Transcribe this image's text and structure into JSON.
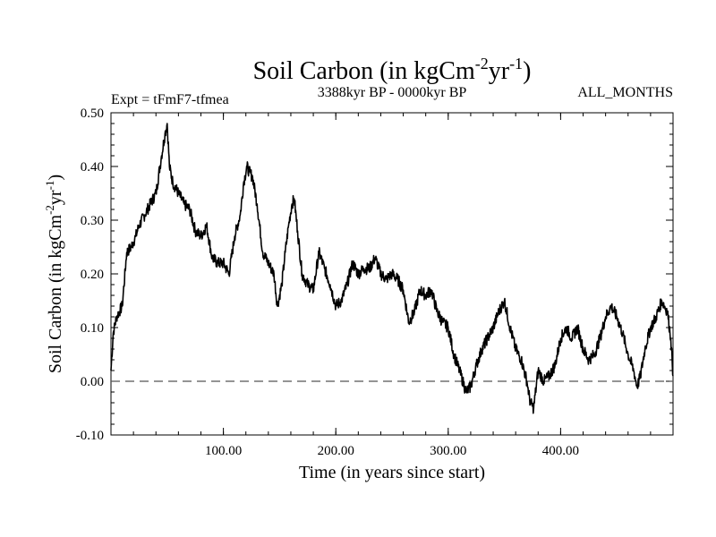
{
  "chart_data": {
    "type": "line",
    "title": "Soil Carbon (in kgCm",
    "title_sup1": "-2",
    "title_mid": "yr",
    "title_sup2": "-1",
    "title_end": ")",
    "subtitle_left": "Expt = tFmF7-tfmea",
    "subtitle_center": "3388kyr BP - 0000kyr BP",
    "subtitle_right": "ALL_MONTHS",
    "xlabel": "Time (in years since start)",
    "ylabel": "Soil Carbon (in kgCm",
    "ylabel_sup1": "-2",
    "ylabel_mid": "yr",
    "ylabel_sup2": "-1",
    "ylabel_end": ")",
    "xlim": [
      0,
      500
    ],
    "ylim": [
      -0.1,
      0.5
    ],
    "x_ticks": [
      100,
      200,
      300,
      400
    ],
    "x_tick_labels": [
      "100.00",
      "200.00",
      "300.00",
      "400.00"
    ],
    "y_ticks": [
      -0.1,
      0.0,
      0.1,
      0.2,
      0.3,
      0.4,
      0.5
    ],
    "y_tick_labels": [
      "-0.10",
      "0.00",
      "0.10",
      "0.20",
      "0.30",
      "0.40",
      "0.50"
    ],
    "reference_line": {
      "y": 0.0,
      "style": "dashed"
    },
    "series": [
      {
        "name": "Soil Carbon",
        "x": [
          0,
          2,
          5,
          10,
          14,
          18,
          22,
          25,
          30,
          35,
          40,
          45,
          48,
          50,
          52,
          55,
          60,
          65,
          70,
          75,
          80,
          85,
          90,
          95,
          100,
          105,
          110,
          115,
          118,
          121,
          123,
          126,
          130,
          135,
          140,
          145,
          148,
          152,
          155,
          158,
          161,
          163,
          166,
          170,
          175,
          180,
          185,
          190,
          195,
          200,
          205,
          210,
          215,
          220,
          225,
          230,
          235,
          240,
          245,
          250,
          255,
          260,
          265,
          270,
          275,
          280,
          285,
          290,
          295,
          300,
          305,
          310,
          313,
          316,
          320,
          325,
          330,
          335,
          340,
          345,
          350,
          355,
          360,
          365,
          370,
          373,
          376,
          380,
          385,
          390,
          395,
          400,
          405,
          410,
          415,
          420,
          425,
          430,
          435,
          440,
          445,
          450,
          455,
          460,
          465,
          468,
          471,
          475,
          480,
          485,
          490,
          495,
          498,
          500
        ],
        "y": [
          0.02,
          0.09,
          0.12,
          0.14,
          0.24,
          0.25,
          0.27,
          0.29,
          0.31,
          0.33,
          0.35,
          0.42,
          0.46,
          0.48,
          0.4,
          0.37,
          0.35,
          0.33,
          0.32,
          0.28,
          0.27,
          0.29,
          0.23,
          0.22,
          0.22,
          0.2,
          0.27,
          0.31,
          0.37,
          0.4,
          0.39,
          0.38,
          0.33,
          0.24,
          0.22,
          0.2,
          0.14,
          0.18,
          0.24,
          0.29,
          0.33,
          0.34,
          0.28,
          0.2,
          0.18,
          0.17,
          0.24,
          0.21,
          0.18,
          0.14,
          0.15,
          0.18,
          0.22,
          0.2,
          0.21,
          0.21,
          0.23,
          0.2,
          0.19,
          0.2,
          0.19,
          0.17,
          0.11,
          0.13,
          0.17,
          0.16,
          0.17,
          0.13,
          0.11,
          0.1,
          0.05,
          0.02,
          0.0,
          -0.02,
          -0.01,
          0.03,
          0.06,
          0.08,
          0.1,
          0.13,
          0.15,
          0.1,
          0.06,
          0.04,
          0.0,
          -0.04,
          -0.05,
          0.02,
          0.0,
          0.01,
          0.03,
          0.08,
          0.1,
          0.08,
          0.1,
          0.06,
          0.04,
          0.05,
          0.08,
          0.12,
          0.14,
          0.12,
          0.09,
          0.05,
          0.02,
          -0.01,
          0.01,
          0.06,
          0.1,
          0.12,
          0.15,
          0.13,
          0.08,
          0.01
        ]
      }
    ]
  }
}
